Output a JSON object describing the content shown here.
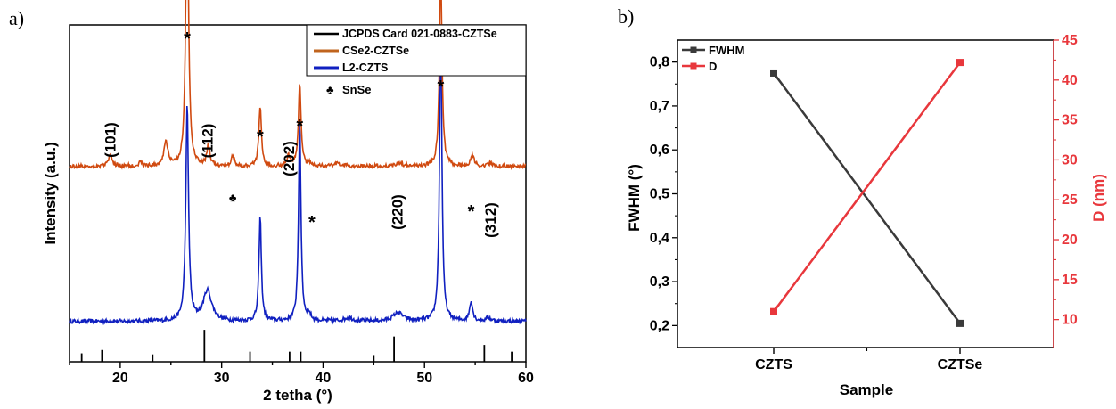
{
  "panel_a": {
    "label": "a)",
    "xlabel": "2 tetha (°)",
    "ylabel": "Intensity (a.u.)",
    "legend": [
      "JCPDS Card 021-0883-CZTSe",
      "CSe2-CZTSe",
      "L2-CZTS"
    ],
    "snse_label": "SnSe",
    "colors": {
      "reference": "#000000",
      "cse2": "#d04a10",
      "l2": "#1020c0",
      "cse2_legend": "#c0641e"
    }
  },
  "panel_b": {
    "label": "b)",
    "xlabel": "Sample",
    "ylabel_left": "FWHM (°)",
    "ylabel_right": "D (nm)",
    "legend": [
      "FWHM",
      "D"
    ],
    "colors": {
      "fwhm": "#3a3a3a",
      "d": "#e8373c"
    }
  },
  "chart_data": [
    {
      "type": "line",
      "xlabel": "2 tetha (°)",
      "ylabel": "Intensity (a.u.)",
      "xlim": [
        15,
        60
      ],
      "xticks": [
        20,
        30,
        40,
        50,
        60
      ],
      "yticks_shown": false,
      "series": [
        {
          "name": "CSe2-CZTSe",
          "baseline": 0.58,
          "peaks": [
            {
              "x": 19.0,
              "h": 0.03,
              "w": 0.25
            },
            {
              "x": 22.0,
              "h": 0.01,
              "w": 0.25
            },
            {
              "x": 24.5,
              "h": 0.075,
              "w": 0.22
            },
            {
              "x": 26.6,
              "h": 0.86,
              "w": 0.16
            },
            {
              "x": 28.7,
              "h": 0.06,
              "w": 0.18
            },
            {
              "x": 31.1,
              "h": 0.03,
              "w": 0.2
            },
            {
              "x": 33.8,
              "h": 0.18,
              "w": 0.15
            },
            {
              "x": 36.6,
              "h": 0.03,
              "w": 0.2
            },
            {
              "x": 37.7,
              "h": 0.25,
              "w": 0.15
            },
            {
              "x": 38.7,
              "h": 0.01,
              "w": 0.2
            },
            {
              "x": 41.5,
              "h": 0.008,
              "w": 0.4
            },
            {
              "x": 47.5,
              "h": 0.012,
              "w": 0.3
            },
            {
              "x": 51.6,
              "h": 0.58,
              "w": 0.15
            },
            {
              "x": 54.7,
              "h": 0.035,
              "w": 0.2
            },
            {
              "x": 56.5,
              "h": 0.008,
              "w": 0.3
            }
          ]
        },
        {
          "name": "L2-CZTS",
          "baseline": 0.12,
          "peaks": [
            {
              "x": 26.6,
              "h": 0.64,
              "w": 0.16
            },
            {
              "x": 28.6,
              "h": 0.09,
              "w": 0.5
            },
            {
              "x": 33.8,
              "h": 0.31,
              "w": 0.14
            },
            {
              "x": 37.7,
              "h": 0.59,
              "w": 0.14
            },
            {
              "x": 38.6,
              "h": 0.02,
              "w": 0.2
            },
            {
              "x": 42.5,
              "h": 0.01,
              "w": 0.5
            },
            {
              "x": 47.4,
              "h": 0.025,
              "w": 0.6
            },
            {
              "x": 51.6,
              "h": 0.87,
              "w": 0.14
            },
            {
              "x": 54.6,
              "h": 0.06,
              "w": 0.18
            },
            {
              "x": 56.3,
              "h": 0.01,
              "w": 0.3
            }
          ]
        },
        {
          "name": "JCPDS Card 021-0883-CZTSe",
          "sticks": [
            {
              "x": 16.2,
              "h": 0.025
            },
            {
              "x": 18.2,
              "h": 0.035
            },
            {
              "x": 23.2,
              "h": 0.022
            },
            {
              "x": 28.3,
              "h": 0.095
            },
            {
              "x": 32.8,
              "h": 0.03
            },
            {
              "x": 36.7,
              "h": 0.03
            },
            {
              "x": 37.8,
              "h": 0.03
            },
            {
              "x": 45.0,
              "h": 0.02
            },
            {
              "x": 47.0,
              "h": 0.075
            },
            {
              "x": 55.9,
              "h": 0.05
            },
            {
              "x": 58.6,
              "h": 0.03
            }
          ]
        }
      ],
      "annotations": [
        {
          "text": "(101)",
          "x": 19.0
        },
        {
          "text": "(112)",
          "x": 28.6
        },
        {
          "text": "(202)",
          "x": 36.6
        },
        {
          "text": "(220)",
          "x": 47.3
        },
        {
          "text": "(312)",
          "x": 56.5
        }
      ],
      "star_markers": [
        26.6,
        33.8,
        37.7,
        38.9,
        51.6,
        54.6
      ],
      "snse_markers": [
        31.1
      ]
    },
    {
      "type": "line",
      "xlabel": "Sample",
      "categories": [
        "CZTS",
        "CZTSe"
      ],
      "series": [
        {
          "name": "FWHM",
          "axis": "left",
          "values": [
            0.775,
            0.205
          ]
        },
        {
          "name": "D",
          "axis": "right",
          "values": [
            11.0,
            42.2
          ]
        }
      ],
      "ylabel_left": "FWHM (°)",
      "ylim_left": [
        0.15,
        0.85
      ],
      "yticks_left": [
        "0,2",
        "0,3",
        "0,4",
        "0,5",
        "0,6",
        "0,7",
        "0,8"
      ],
      "ylabel_right": "D (nm)",
      "ylim_right": [
        6.5,
        45
      ],
      "yticks_right": [
        "10",
        "15",
        "20",
        "25",
        "30",
        "35",
        "40",
        "45"
      ]
    }
  ]
}
